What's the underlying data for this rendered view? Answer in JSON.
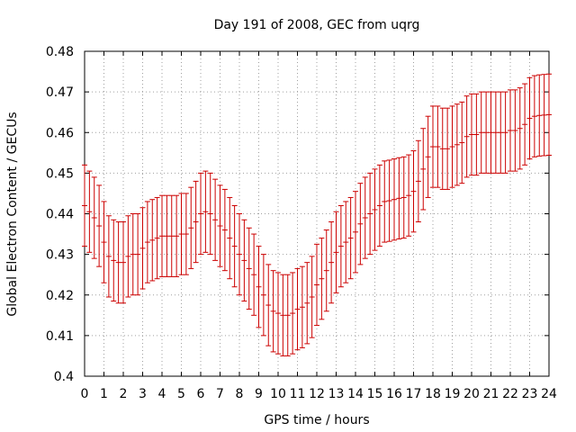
{
  "chart_data": {
    "type": "errorbar",
    "title": "Day 191 of 2008, GEC from uqrg",
    "xlabel": "GPS time / hours",
    "ylabel": "Global Electron Content / GECUs",
    "xlim": [
      0,
      24
    ],
    "ylim": [
      0.4,
      0.48
    ],
    "xticks": [
      "0",
      "1",
      "2",
      "3",
      "4",
      "5",
      "6",
      "7",
      "8",
      "9",
      "10",
      "11",
      "12",
      "13",
      "14",
      "15",
      "16",
      "17",
      "18",
      "19",
      "20",
      "21",
      "22",
      "23",
      "24"
    ],
    "yticks": [
      "0.4",
      "0.41",
      "0.42",
      "0.43",
      "0.44",
      "0.45",
      "0.46",
      "0.47",
      "0.48"
    ],
    "grid": true,
    "color": "#cc0000",
    "series": [
      {
        "x": [
          0,
          0.25,
          0.5,
          0.75,
          1,
          1.25,
          1.5,
          1.75,
          2,
          2.25,
          2.5,
          2.75,
          3,
          3.25,
          3.5,
          3.75,
          4,
          4.25,
          4.5,
          4.75,
          5,
          5.25,
          5.5,
          5.75,
          6,
          6.25,
          6.5,
          6.75,
          7,
          7.25,
          7.5,
          7.75,
          8,
          8.25,
          8.5,
          8.75,
          9,
          9.25,
          9.5,
          9.75,
          10,
          10.25,
          10.5,
          10.75,
          11,
          11.25,
          11.5,
          11.75,
          12,
          12.25,
          12.5,
          12.75,
          13,
          13.25,
          13.5,
          13.75,
          14,
          14.25,
          14.5,
          14.75,
          15,
          15.25,
          15.5,
          15.75,
          16,
          16.25,
          16.5,
          16.75,
          17,
          17.25,
          17.5,
          17.75,
          18,
          18.25,
          18.5,
          18.75,
          19,
          19.25,
          19.5,
          19.75,
          20,
          20.25,
          20.5,
          20.75,
          21,
          21.25,
          21.5,
          21.75,
          22,
          22.25,
          22.5,
          22.75,
          23,
          23.25,
          23.5,
          23.75,
          24
        ],
        "y": [
          0.442,
          0.4405,
          0.439,
          0.437,
          0.433,
          0.4295,
          0.4285,
          0.428,
          0.428,
          0.4295,
          0.43,
          0.43,
          0.4315,
          0.433,
          0.4335,
          0.434,
          0.4345,
          0.4345,
          0.4345,
          0.4345,
          0.435,
          0.435,
          0.4365,
          0.438,
          0.44,
          0.4405,
          0.44,
          0.4385,
          0.437,
          0.436,
          0.434,
          0.432,
          0.43,
          0.4285,
          0.4265,
          0.425,
          0.422,
          0.42,
          0.4175,
          0.416,
          0.4155,
          0.415,
          0.415,
          0.4155,
          0.4165,
          0.417,
          0.418,
          0.4195,
          0.4225,
          0.424,
          0.426,
          0.428,
          0.4305,
          0.432,
          0.433,
          0.434,
          0.4355,
          0.4375,
          0.439,
          0.44,
          0.441,
          0.442,
          0.443,
          0.4432,
          0.4435,
          0.4438,
          0.444,
          0.4445,
          0.4455,
          0.448,
          0.451,
          0.454,
          0.4565,
          0.4565,
          0.456,
          0.456,
          0.4565,
          0.457,
          0.4575,
          0.459,
          0.4595,
          0.4595,
          0.46,
          0.46,
          0.46,
          0.46,
          0.46,
          0.46,
          0.4605,
          0.4605,
          0.461,
          0.462,
          0.4635,
          0.464,
          0.4642,
          0.4643,
          0.4644
        ],
        "error": 0.01
      }
    ]
  }
}
